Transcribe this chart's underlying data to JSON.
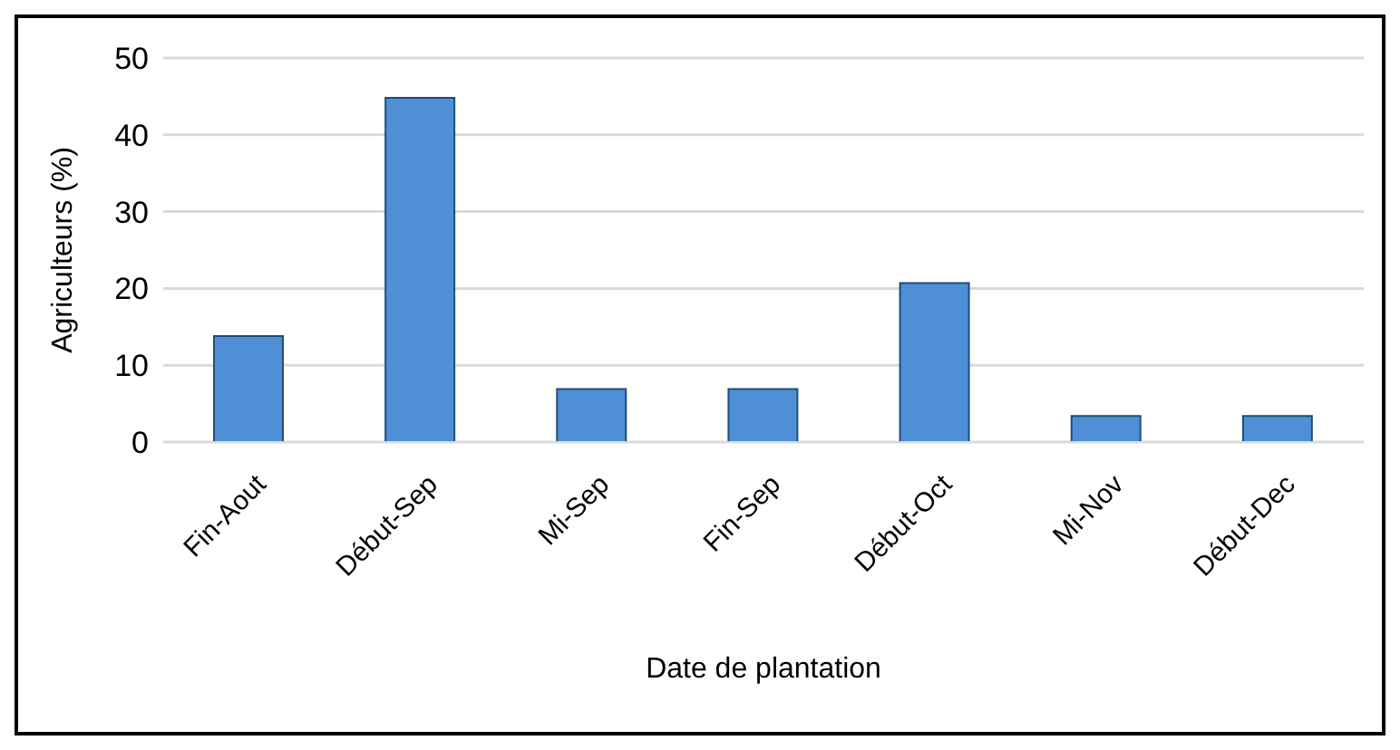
{
  "chart_data": {
    "type": "bar",
    "xlabel": "Date de plantation",
    "ylabel": "Agriculteurs (%)",
    "categories": [
      "Fin-Aout",
      "Début-Sep",
      "Mi-Sep",
      "Fin-Sep",
      "Début-Oct",
      "Mi-Nov",
      "Début-Dec"
    ],
    "values": [
      13.8,
      44.8,
      6.9,
      6.9,
      20.7,
      3.4,
      3.4
    ],
    "color": "#4f8fd6",
    "ylim": [
      0,
      50
    ],
    "yticks": [
      0,
      10,
      20,
      30,
      40,
      50
    ],
    "grid": "y"
  }
}
